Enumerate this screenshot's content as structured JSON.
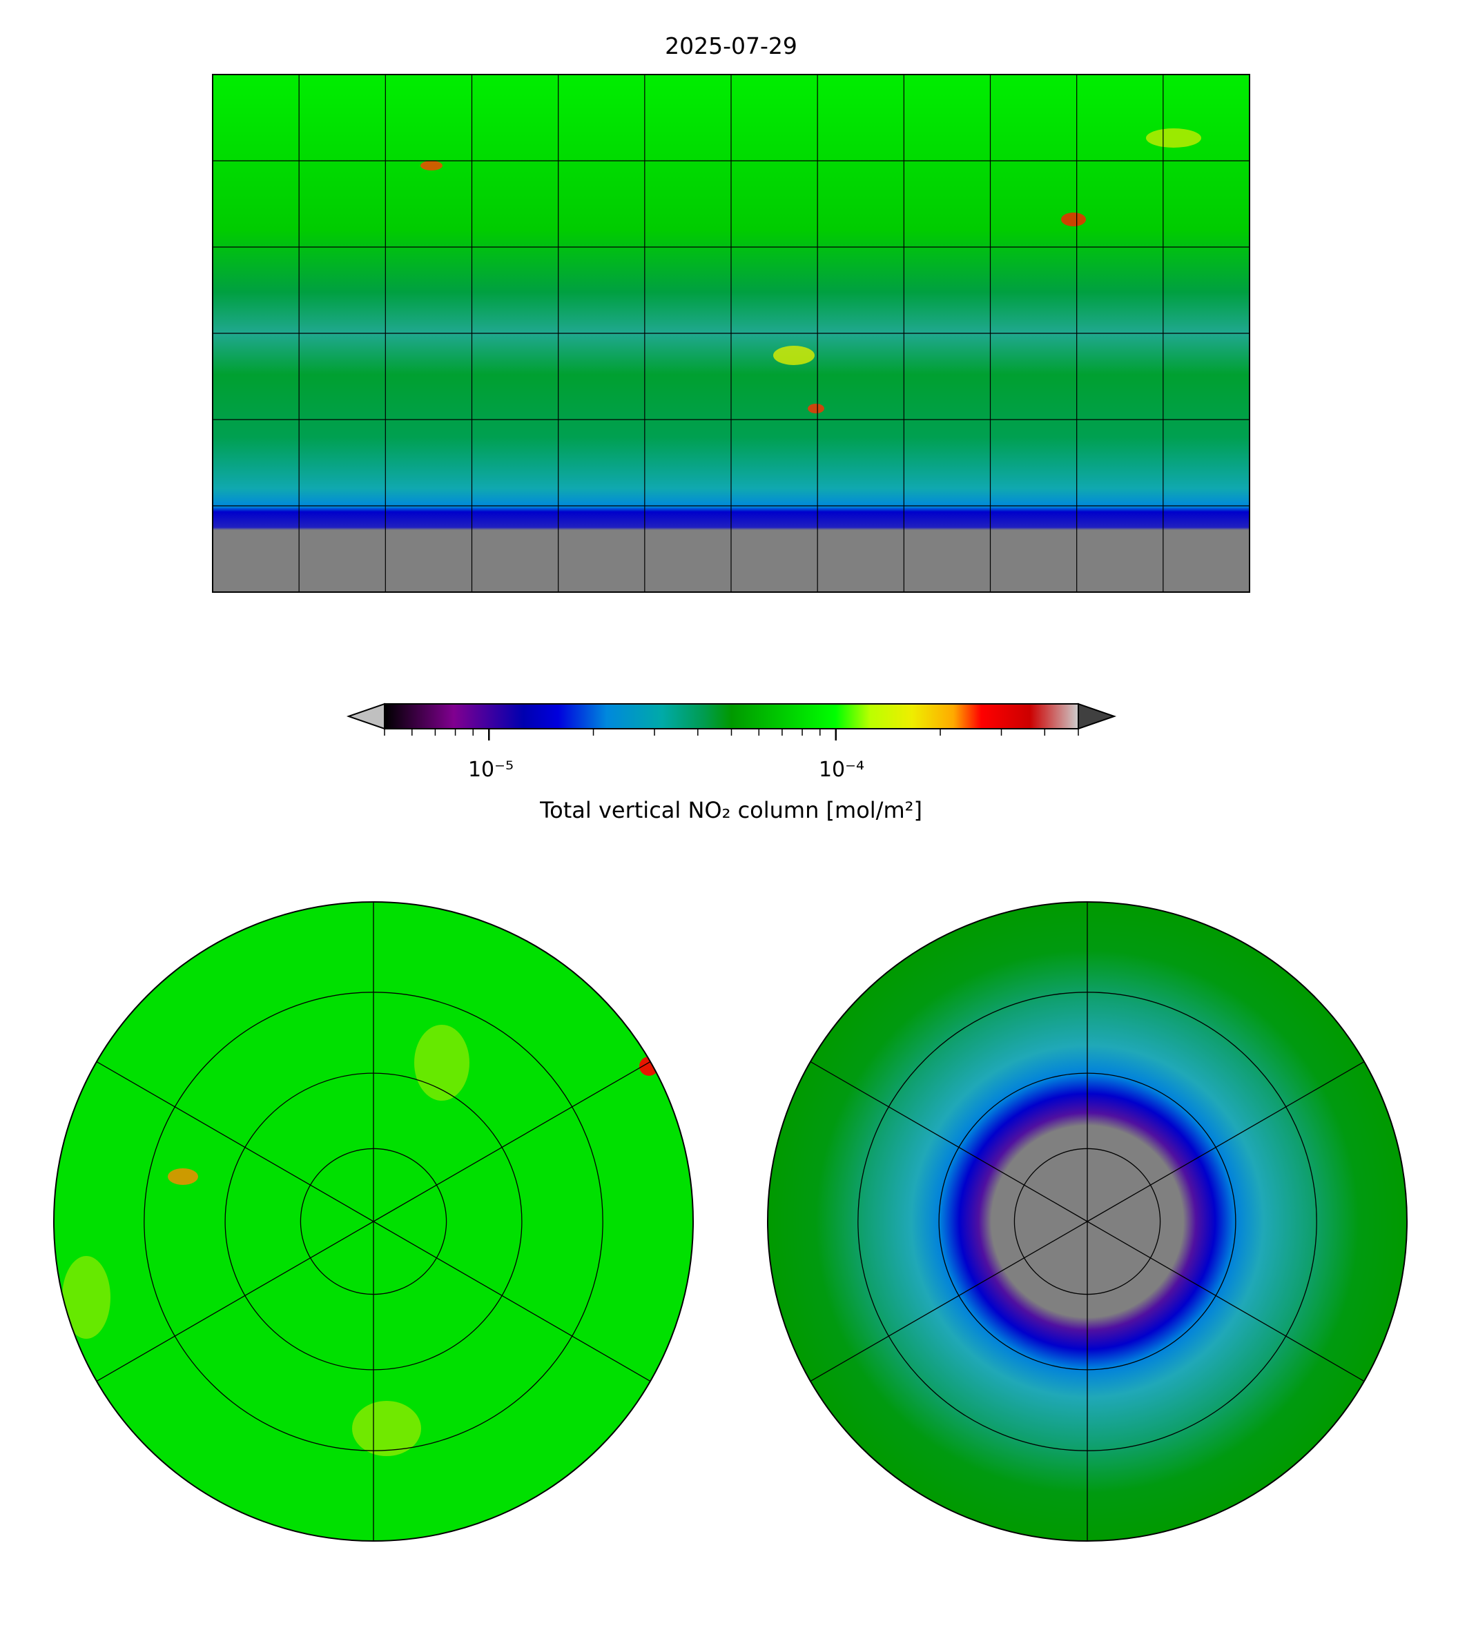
{
  "chart_data": {
    "type": "heatmap",
    "title": "2025-07-29",
    "panels": [
      {
        "name": "global",
        "projection": "plate-carree",
        "lon_range": [
          -180,
          180
        ],
        "lat_range": [
          -90,
          90
        ],
        "gridlines_lon_step": 30,
        "gridlines_lat_step": 30
      },
      {
        "name": "north-polar",
        "projection": "north-polar-stereographic",
        "lat_circles": [
          30,
          45,
          60,
          75
        ],
        "meridians_step": 60
      },
      {
        "name": "south-polar",
        "projection": "south-polar-stereographic",
        "lat_circles": [
          -30,
          -45,
          -60,
          -75
        ],
        "meridians_step": 60
      }
    ],
    "colorbar": {
      "label": "Total vertical NO₂ column [mol/m²]",
      "scale": "log",
      "range": [
        5e-06,
        0.0005
      ],
      "extend": "both",
      "major_ticks": [
        1e-05,
        0.0001
      ],
      "tick_labels": [
        "10⁻⁵",
        "10⁻⁴"
      ],
      "colormap": "nipy_spectral",
      "under_color": "#c0c0c0",
      "over_color": "#404040",
      "missing_color": "#808080"
    }
  }
}
